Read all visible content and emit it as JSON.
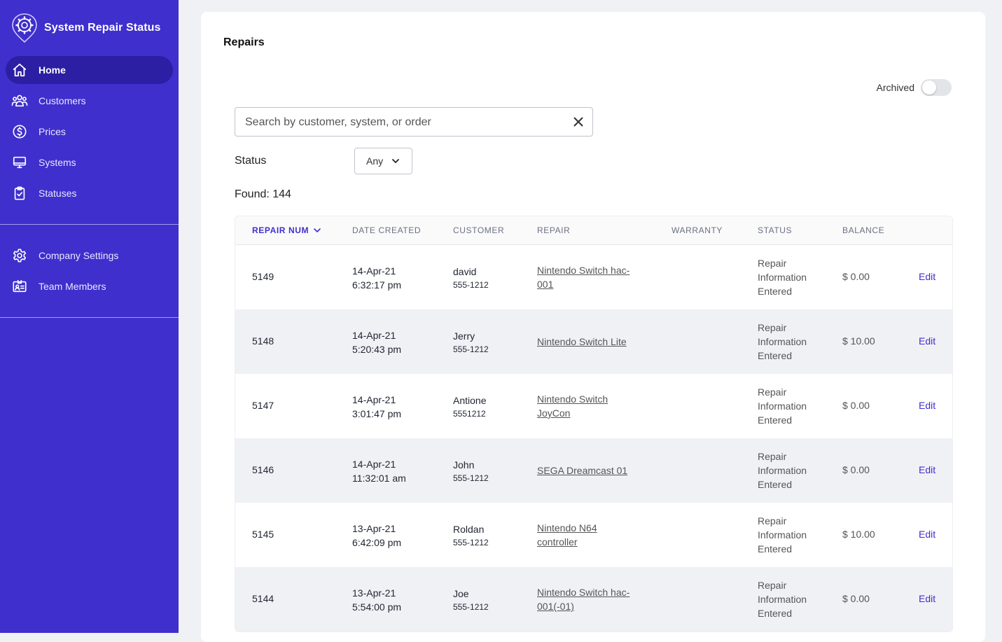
{
  "app": {
    "title": "System Repair Status"
  },
  "sidebar": {
    "primary": [
      {
        "label": "Home",
        "icon": "home-icon",
        "active": true
      },
      {
        "label": "Customers",
        "icon": "users-icon"
      },
      {
        "label": "Prices",
        "icon": "dollar-icon"
      },
      {
        "label": "Systems",
        "icon": "monitor-icon"
      },
      {
        "label": "Statuses",
        "icon": "clipboard-check-icon"
      }
    ],
    "secondary": [
      {
        "label": "Company Settings",
        "icon": "gear-icon"
      },
      {
        "label": "Team Members",
        "icon": "id-card-icon"
      }
    ]
  },
  "main": {
    "title": "Repairs",
    "archived_label": "Archived",
    "archived_on": false,
    "search": {
      "placeholder": "Search by customer, system, or order",
      "value": ""
    },
    "status_label": "Status",
    "status_value": "Any",
    "found_text": "Found: 144"
  },
  "table": {
    "columns": [
      "REPAIR NUM",
      "DATE CREATED",
      "CUSTOMER",
      "REPAIR",
      "WARRANTY",
      "STATUS",
      "BALANCE"
    ],
    "edit_label": "Edit",
    "rows": [
      {
        "num": "5149",
        "date": "14-Apr-21",
        "time": "6:32:17 pm",
        "customer": "david",
        "phone": "555-1212",
        "repair_l1": "Nintendo Switch hac-",
        "repair_l2": "001",
        "warranty": "",
        "status_l1": "Repair",
        "status_l2": "Information",
        "status_l3": "Entered",
        "balance": "$ 0.00"
      },
      {
        "num": "5148",
        "date": "14-Apr-21",
        "time": "5:20:43 pm",
        "customer": "Jerry",
        "phone": "555-1212",
        "repair_l1": "Nintendo Switch Lite",
        "repair_l2": "",
        "warranty": "",
        "status_l1": "Repair",
        "status_l2": "Information",
        "status_l3": "Entered",
        "balance": "$ 10.00"
      },
      {
        "num": "5147",
        "date": "14-Apr-21",
        "time": "3:01:47 pm",
        "customer": "Antione",
        "phone": "5551212",
        "repair_l1": "Nintendo Switch",
        "repair_l2": "JoyCon",
        "warranty": "",
        "status_l1": "Repair",
        "status_l2": "Information",
        "status_l3": "Entered",
        "balance": "$ 0.00"
      },
      {
        "num": "5146",
        "date": "14-Apr-21",
        "time": "11:32:01 am",
        "customer": "John",
        "phone": "555-1212",
        "repair_l1": "SEGA Dreamcast 01",
        "repair_l2": "",
        "warranty": "",
        "status_l1": "Repair",
        "status_l2": "Information",
        "status_l3": "Entered",
        "balance": "$ 0.00"
      },
      {
        "num": "5145",
        "date": "13-Apr-21",
        "time": "6:42:09 pm",
        "customer": "Roldan",
        "phone": "555-1212",
        "repair_l1": "Nintendo N64",
        "repair_l2": "controller",
        "warranty": "",
        "status_l1": "Repair",
        "status_l2": "Information",
        "status_l3": "Entered",
        "balance": "$ 10.00"
      },
      {
        "num": "5144",
        "date": "13-Apr-21",
        "time": "5:54:00 pm",
        "customer": "Joe",
        "phone": "555-1212",
        "repair_l1": "Nintendo Switch hac-",
        "repair_l2": "001(-01)",
        "warranty": "",
        "status_l1": "Repair",
        "status_l2": "Information",
        "status_l3": "Entered",
        "balance": "$ 0.00"
      }
    ]
  },
  "colors": {
    "sidebar": "#3f2fcc",
    "sidebar_active": "#2c1fa3",
    "accent": "#3f2fcc",
    "background": "#f0f1f5"
  }
}
